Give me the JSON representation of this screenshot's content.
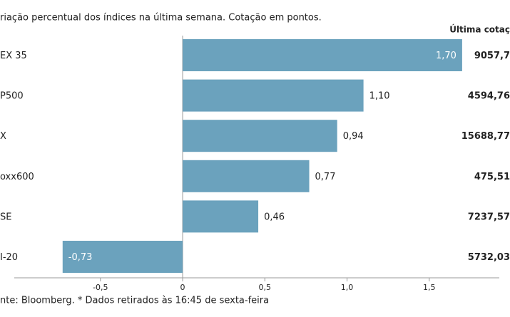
{
  "chart_data": {
    "type": "barh",
    "title": "riação percentual dos índices na última semana. Cotação em pontos.",
    "categories": [
      "EX 35",
      "P500",
      "X",
      "oxx600",
      "SE",
      "I-20"
    ],
    "values": [
      1.7,
      1.1,
      0.94,
      0.77,
      0.46,
      -0.73
    ],
    "value_labels": [
      "1,70",
      "1,10",
      "0,94",
      "0,77",
      "0,46",
      "-0,73"
    ],
    "color": "#6ba2bd",
    "xlim": [
      -1.1,
      1.9
    ],
    "xticks": [
      {
        "value": -0.5,
        "label": "-0,5"
      },
      0,
      {
        "value": 0.5,
        "label": "0,5"
      },
      {
        "value": 1,
        "label": "1,0"
      },
      {
        "value": 1.5,
        "label": "1,5"
      }
    ],
    "quote_header": "Última cotaç",
    "quotes": [
      "9057,7",
      "4594,76",
      "15688,77",
      "475,51",
      "7237,57",
      "5732,03"
    ],
    "footer": "nte: Bloomberg.  * Dados retirados às 16:45 de sexta-feira"
  }
}
